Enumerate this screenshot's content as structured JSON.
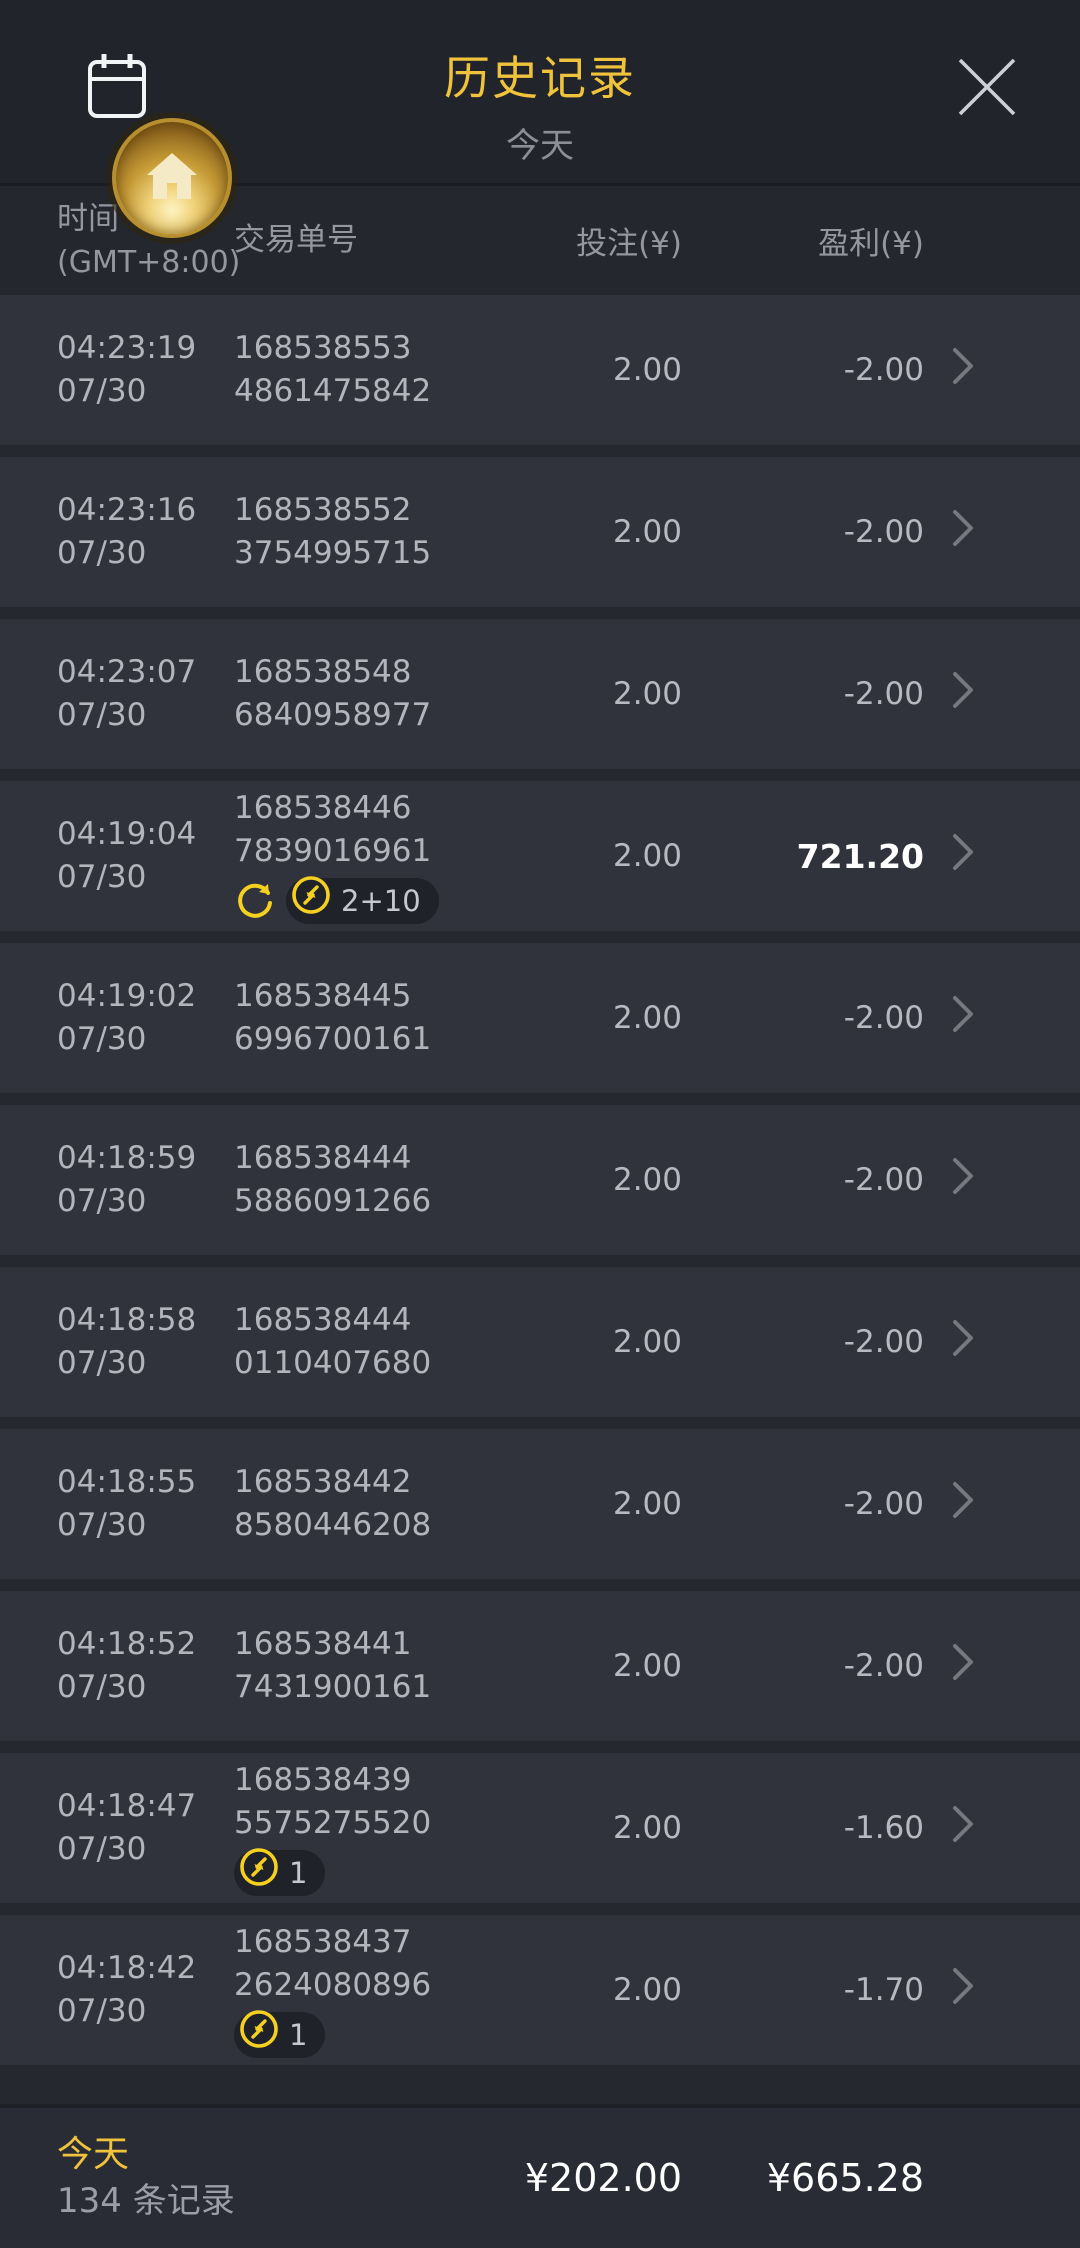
{
  "header": {
    "title": "历史记录",
    "subtitle": "今天"
  },
  "icons": {
    "calendar": "calendar-icon",
    "home": "home-icon",
    "close": "close-icon",
    "chevron": "chevron-right-icon",
    "refresh": "refresh-icon",
    "round_trip": "round-trip-icon"
  },
  "colors": {
    "accent_gold": "#f0c33c",
    "badge_yellow": "#f5d021",
    "row_bg": "#30323c",
    "header_bg": "#22242b",
    "footer_bg": "#2a2c35",
    "positive_profit": "#ffffff",
    "text_gray": "#b7b9c1"
  },
  "table": {
    "columns": {
      "time_line1": "时间",
      "time_line2": "(GMT+8:00)",
      "id": "交易单号",
      "bet": "投注(¥)",
      "profit": "盈利(¥)"
    },
    "rows": [
      {
        "time": "04:23:19",
        "date": "07/30",
        "id1": "168538553",
        "id2": "4861475842",
        "bet": "2.00",
        "profit": "-2.00",
        "positive": false,
        "refresh": false,
        "pill": null
      },
      {
        "time": "04:23:16",
        "date": "07/30",
        "id1": "168538552",
        "id2": "3754995715",
        "bet": "2.00",
        "profit": "-2.00",
        "positive": false,
        "refresh": false,
        "pill": null
      },
      {
        "time": "04:23:07",
        "date": "07/30",
        "id1": "168538548",
        "id2": "6840958977",
        "bet": "2.00",
        "profit": "-2.00",
        "positive": false,
        "refresh": false,
        "pill": null
      },
      {
        "time": "04:19:04",
        "date": "07/30",
        "id1": "168538446",
        "id2": "7839016961",
        "bet": "2.00",
        "profit": "721.20",
        "positive": true,
        "refresh": true,
        "pill": "2+10"
      },
      {
        "time": "04:19:02",
        "date": "07/30",
        "id1": "168538445",
        "id2": "6996700161",
        "bet": "2.00",
        "profit": "-2.00",
        "positive": false,
        "refresh": false,
        "pill": null
      },
      {
        "time": "04:18:59",
        "date": "07/30",
        "id1": "168538444",
        "id2": "5886091266",
        "bet": "2.00",
        "profit": "-2.00",
        "positive": false,
        "refresh": false,
        "pill": null
      },
      {
        "time": "04:18:58",
        "date": "07/30",
        "id1": "168538444",
        "id2": "0110407680",
        "bet": "2.00",
        "profit": "-2.00",
        "positive": false,
        "refresh": false,
        "pill": null
      },
      {
        "time": "04:18:55",
        "date": "07/30",
        "id1": "168538442",
        "id2": "8580446208",
        "bet": "2.00",
        "profit": "-2.00",
        "positive": false,
        "refresh": false,
        "pill": null
      },
      {
        "time": "04:18:52",
        "date": "07/30",
        "id1": "168538441",
        "id2": "7431900161",
        "bet": "2.00",
        "profit": "-2.00",
        "positive": false,
        "refresh": false,
        "pill": null
      },
      {
        "time": "04:18:47",
        "date": "07/30",
        "id1": "168538439",
        "id2": "5575275520",
        "bet": "2.00",
        "profit": "-1.60",
        "positive": false,
        "refresh": false,
        "pill": "1"
      },
      {
        "time": "04:18:42",
        "date": "07/30",
        "id1": "168538437",
        "id2": "2624080896",
        "bet": "2.00",
        "profit": "-1.70",
        "positive": false,
        "refresh": false,
        "pill": "1"
      }
    ]
  },
  "footer": {
    "day_label": "今天",
    "records_count": "134 条记录",
    "total_bet": "¥202.00",
    "total_profit": "¥665.28"
  }
}
